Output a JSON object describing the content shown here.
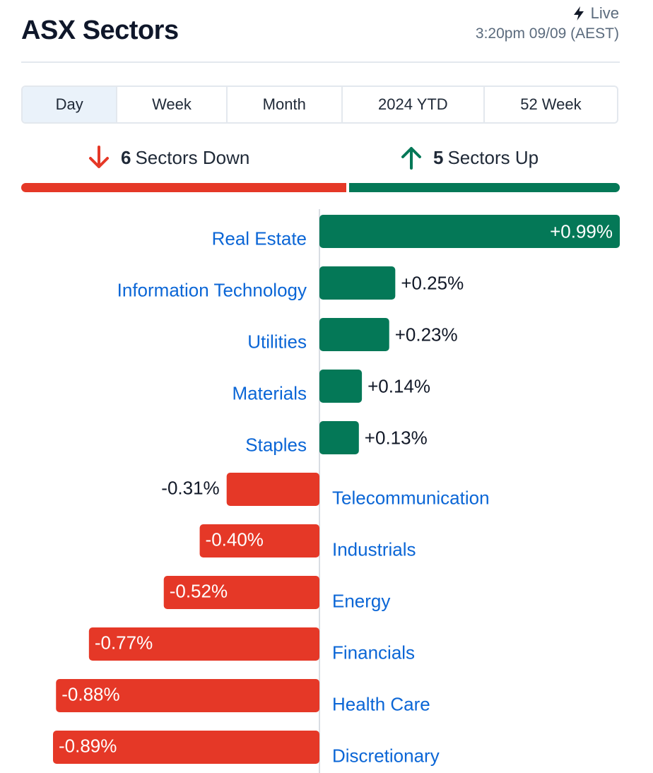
{
  "header": {
    "title": "ASX Sectors",
    "live_label": "Live",
    "timestamp": "3:20pm 09/09 (AEST)"
  },
  "tabs": [
    {
      "label": "Day",
      "active": true
    },
    {
      "label": "Week",
      "active": false
    },
    {
      "label": "Month",
      "active": false
    },
    {
      "label": "2024 YTD",
      "active": false
    },
    {
      "label": "52 Week",
      "active": false
    }
  ],
  "summary": {
    "down_count": "6",
    "down_label": "Sectors Down",
    "up_count": "5",
    "up_label": "Sectors Up"
  },
  "colors": {
    "up": "#047857",
    "down": "#e53827",
    "link": "#0b66d6",
    "text": "#111827"
  },
  "chart_data": {
    "type": "bar",
    "orientation": "horizontal",
    "categories": [
      "Real Estate",
      "Information Technology",
      "Utilities",
      "Materials",
      "Staples",
      "Telecommunication",
      "Industrials",
      "Energy",
      "Financials",
      "Health Care",
      "Discretionary"
    ],
    "values": [
      0.99,
      0.25,
      0.23,
      0.14,
      0.13,
      -0.31,
      -0.4,
      -0.52,
      -0.77,
      -0.88,
      -0.89
    ],
    "value_labels": [
      "+0.99%",
      "+0.25%",
      "+0.23%",
      "+0.14%",
      "+0.13%",
      "-0.31%",
      "-0.40%",
      "-0.52%",
      "-0.77%",
      "-0.88%",
      "-0.89%"
    ]
  }
}
